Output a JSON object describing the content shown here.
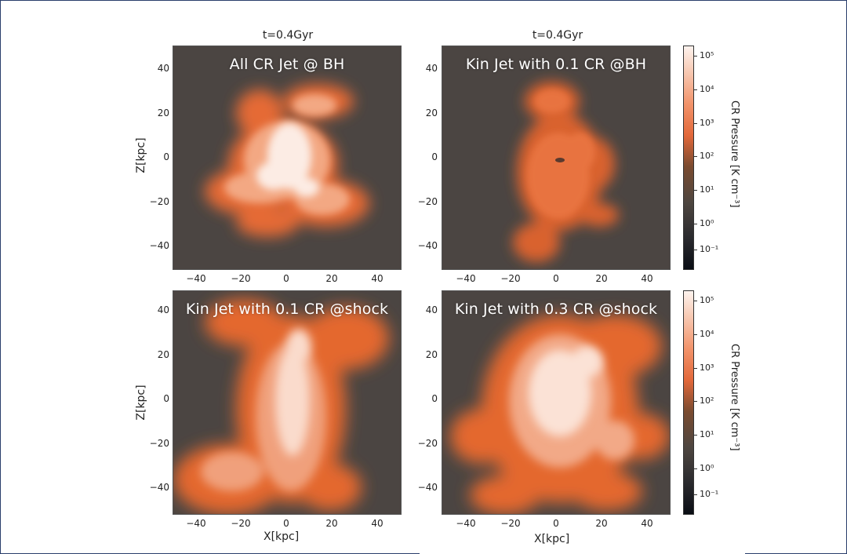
{
  "panels": [
    {
      "id": "tl",
      "label": "All CR Jet @ BH",
      "title": "t=0.4Gyr"
    },
    {
      "id": "tr",
      "label": "Kin Jet with 0.1 CR @BH",
      "title": "t=0.4Gyr"
    },
    {
      "id": "bl",
      "label": "Kin Jet with 0.1 CR @shock",
      "title": ""
    },
    {
      "id": "br",
      "label": "Kin Jet with 0.3 CR @shock",
      "title": ""
    }
  ],
  "axes": {
    "xlabel": "X[kpc]",
    "ylabel": "Z[kpc]",
    "xticks": [
      "−40",
      "−20",
      "0",
      "20",
      "40"
    ],
    "yticks": [
      "40",
      "20",
      "0",
      "−20",
      "−40"
    ]
  },
  "colorbar": {
    "label": "CR Pressure [K cm⁻³]",
    "ticks": [
      "10⁵",
      "10⁴",
      "10³",
      "10²",
      "10¹",
      "10⁰",
      "10⁻¹"
    ],
    "colors": {
      "low": "#0a0d14",
      "mid": "#e2683a",
      "high": "#fdf3ee"
    }
  },
  "colors": {
    "background_gas": "#4b4542",
    "cr_orange": "#e8703f",
    "cr_light": "#f5b89a",
    "cr_core": "#fdf2ec",
    "frame": "#2a3e6b"
  }
}
